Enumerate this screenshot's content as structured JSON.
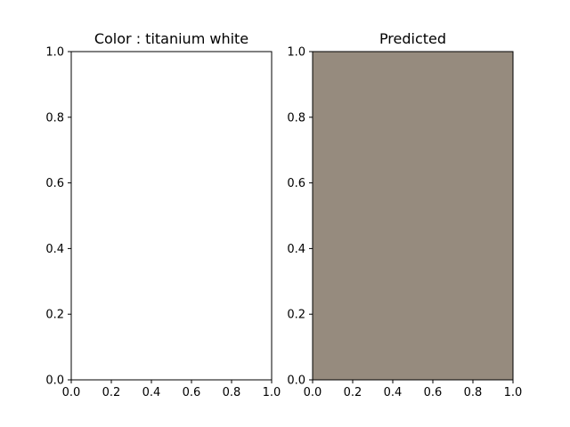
{
  "chart_data": [
    {
      "type": "area",
      "title": "Color : titanium white",
      "xlabel": "",
      "ylabel": "",
      "xlim": [
        0.0,
        1.0
      ],
      "ylim": [
        0.0,
        1.0
      ],
      "xticks": [
        "0.0",
        "0.2",
        "0.4",
        "0.6",
        "0.8",
        "1.0"
      ],
      "yticks": [
        "0.0",
        "0.2",
        "0.4",
        "0.6",
        "0.8",
        "1.0"
      ],
      "fill_color": "#ffffff",
      "grid": false
    },
    {
      "type": "area",
      "title": "Predicted",
      "xlabel": "",
      "ylabel": "",
      "xlim": [
        0.0,
        1.0
      ],
      "ylim": [
        0.0,
        1.0
      ],
      "xticks": [
        "0.0",
        "0.2",
        "0.4",
        "0.6",
        "0.8",
        "1.0"
      ],
      "yticks": [
        "0.0",
        "0.2",
        "0.4",
        "0.6",
        "0.8",
        "1.0"
      ],
      "fill_color": "#968b7e",
      "grid": false
    }
  ]
}
